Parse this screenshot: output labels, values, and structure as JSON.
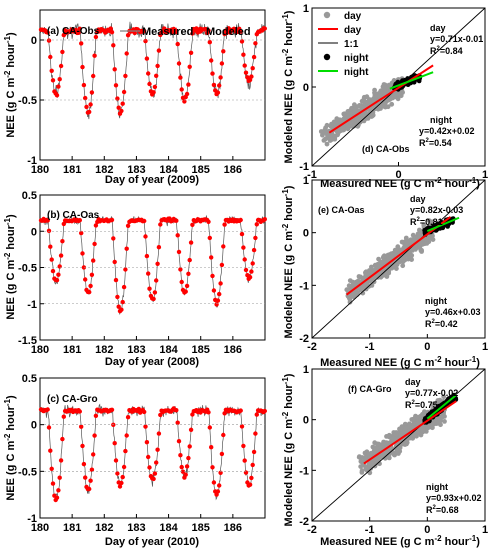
{
  "figure": {
    "left_ylabel": "NEE (g C m",
    "left_ylabel_sup": "-2",
    "left_ylabel_mid": " hour",
    "left_ylabel_sup2": "-1",
    "left_ylabel_end": ")",
    "right_ylabel": "Modeled NEE (g C m",
    "right_xlabel": "Measured NEE (g C m"
  },
  "chart_data": [
    {
      "id": "a",
      "type": "line",
      "panel_label": "(a) CA-Obs",
      "xlabel": "Day of year (2009)",
      "xlim": [
        180,
        187
      ],
      "ylim": [
        -1,
        0.25
      ],
      "xticks": [
        "180",
        "181",
        "182",
        "183",
        "184",
        "185",
        "186"
      ],
      "yticks": [
        "-1",
        "-0.5",
        "0"
      ],
      "legend": [
        "Measured",
        "Modeled"
      ],
      "series": [
        {
          "name": "Measured",
          "color": "#000000"
        },
        {
          "name": "Modeled",
          "color": "#ff0000"
        }
      ],
      "day_trough": [
        -0.45,
        -0.6,
        -0.6,
        -0.45,
        -0.5,
        -0.45,
        -0.35
      ],
      "night_level": 0.08
    },
    {
      "id": "b",
      "type": "line",
      "panel_label": "(b) CA-Oas",
      "xlabel": "Day of year (2008)",
      "xlim": [
        180,
        187
      ],
      "ylim": [
        -1.5,
        0.5
      ],
      "xticks": [
        "180",
        "181",
        "182",
        "183",
        "184",
        "185",
        "186"
      ],
      "yticks": [
        "-1.5",
        "-1",
        "-0.5",
        "0",
        "0.5"
      ],
      "day_trough": [
        -0.7,
        -0.85,
        -1.1,
        -0.95,
        -0.85,
        -1.0,
        -0.65
      ],
      "night_level": 0.15
    },
    {
      "id": "c",
      "type": "line",
      "panel_label": "(c) CA-Gro",
      "xlabel": "Day of year (2010)",
      "xlim": [
        180,
        187
      ],
      "ylim": [
        -1,
        0.5
      ],
      "xticks": [
        "180",
        "181",
        "182",
        "183",
        "184",
        "185",
        "186"
      ],
      "yticks": [
        "-1",
        "-0.5",
        "0",
        "0.5"
      ],
      "day_trough": [
        -0.8,
        -0.7,
        -0.65,
        -0.6,
        -0.55,
        -0.75,
        -0.65
      ],
      "night_level": 0.15
    },
    {
      "id": "d",
      "type": "scatter",
      "panel_label": "(d) CA-Obs",
      "xlim": [
        -1,
        1
      ],
      "ylim": [
        -1,
        1
      ],
      "xticks": [
        "-1",
        "0",
        "1"
      ],
      "yticks": [
        "-1",
        "0",
        "1"
      ],
      "legend": [
        "day",
        "day",
        "1:1",
        "night",
        "night"
      ],
      "day_eq": "y=0.71x-0.01",
      "day_r2": "R",
      "day_r2_val": "=0.84",
      "night_eq": "y=0.42x+0.02",
      "night_r2_val": "=0.54",
      "day_fit": {
        "slope": 0.71,
        "intercept": -0.01,
        "x": [
          -0.8,
          0.4
        ]
      },
      "night_fit": {
        "slope": 0.42,
        "intercept": 0.02,
        "x": [
          -0.1,
          0.4
        ]
      },
      "day_cloud": {
        "x": [
          -0.9,
          0.05
        ],
        "scatter": 0.12
      },
      "night_cloud": {
        "x": [
          -0.05,
          0.25
        ],
        "scatter": 0.06
      }
    },
    {
      "id": "e",
      "type": "scatter",
      "panel_label": "(e) CA-Oas",
      "xlim": [
        -2,
        1
      ],
      "ylim": [
        -2,
        1
      ],
      "xticks": [
        "-2",
        "-1",
        "0",
        "1"
      ],
      "yticks": [
        "-2",
        "-1",
        "0",
        "1"
      ],
      "day_eq": "y=0.82x-0.03",
      "day_r2_val": "=0.81",
      "night_eq": "y=0.46x+0.03",
      "night_r2_val": "=0.42",
      "day_fit": {
        "slope": 0.82,
        "intercept": -0.03,
        "x": [
          -1.4,
          0.4
        ]
      },
      "night_fit": {
        "slope": 0.46,
        "intercept": 0.03,
        "x": [
          0.0,
          0.55
        ]
      },
      "day_cloud": {
        "x": [
          -1.4,
          0.1
        ],
        "scatter": 0.18
      },
      "night_cloud": {
        "x": [
          -0.05,
          0.45
        ],
        "scatter": 0.08
      }
    },
    {
      "id": "f",
      "type": "scatter",
      "panel_label": "(f) CA-Gro",
      "xlim": [
        -2,
        1
      ],
      "ylim": [
        -2,
        1
      ],
      "xticks": [
        "-2",
        "-1",
        "0",
        "1"
      ],
      "yticks": [
        "-2",
        "-1",
        "0",
        "1"
      ],
      "day_eq": "y=0.77x-0.02",
      "day_r2_val": "=0.75",
      "night_eq": "y=0.93x+0.02",
      "night_r2_val": "=0.68",
      "day_fit": {
        "slope": 0.77,
        "intercept": -0.02,
        "x": [
          -1.1,
          0.5
        ]
      },
      "night_fit": {
        "slope": 0.93,
        "intercept": 0.02,
        "x": [
          0.0,
          0.5
        ]
      },
      "day_cloud": {
        "x": [
          -1.2,
          0.3
        ],
        "scatter": 0.2
      },
      "night_cloud": {
        "x": [
          -0.05,
          0.5
        ],
        "scatter": 0.1
      }
    }
  ]
}
